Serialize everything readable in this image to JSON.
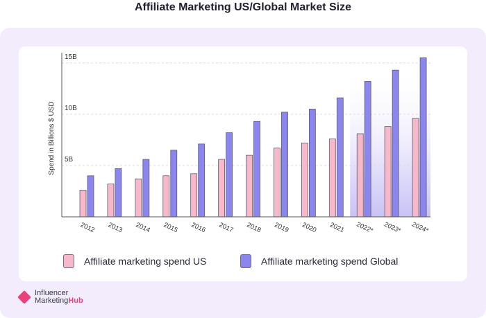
{
  "page": {
    "title": "Affiliate Marketing US/Global Market Size"
  },
  "legend": {
    "us_label": "Affiliate marketing spend US",
    "global_label": "Affiliate marketing spend Global"
  },
  "logo": {
    "line1": "Influencer",
    "line2a": "Marketing",
    "line2b": "Hub"
  },
  "colors": {
    "us": "#f7b8c9",
    "global": "#8a86ee",
    "bar_stroke": "#5b5b6e",
    "projection_band": "#e6e3fb"
  },
  "chart_data": {
    "type": "bar",
    "categories": [
      "2012",
      "2013",
      "2014",
      "2015",
      "2016",
      "2017",
      "2018",
      "2019",
      "2020",
      "2021",
      "2022*",
      "2023*",
      "2024*"
    ],
    "series": [
      {
        "name": "Affiliate marketing spend US",
        "values": [
          2.6,
          3.2,
          3.7,
          4.0,
          4.2,
          5.6,
          6.0,
          6.7,
          7.2,
          7.6,
          8.1,
          8.8,
          9.6
        ]
      },
      {
        "name": "Affiliate marketing spend Global",
        "values": [
          4.0,
          4.7,
          5.6,
          6.5,
          7.1,
          8.2,
          9.3,
          10.2,
          10.5,
          11.6,
          13.2,
          14.3,
          15.5
        ]
      }
    ],
    "ylabel": "Spend in Billions $ USD",
    "yticks": [
      {
        "value": 5,
        "label": "5B"
      },
      {
        "value": 10,
        "label": "10B"
      },
      {
        "value": 15,
        "label": "15B"
      }
    ],
    "ylim": [
      0,
      16
    ],
    "projected_from_index": 10,
    "grid": true
  }
}
